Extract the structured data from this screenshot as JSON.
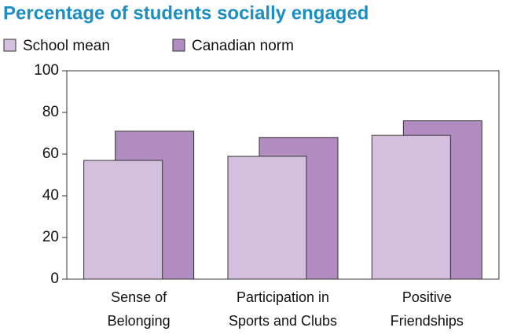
{
  "chart_data": {
    "type": "bar",
    "title": "Percentage of students socially engaged",
    "categories": [
      "Sense of\nBelonging",
      "Participation in\nSports and Clubs",
      "Positive\nFriendships"
    ],
    "series": [
      {
        "name": "School mean",
        "color": "#d4c0de",
        "values": [
          57,
          59,
          69
        ]
      },
      {
        "name": "Canadian norm",
        "color": "#b08cc0",
        "values": [
          71,
          68,
          76
        ]
      }
    ],
    "ylim": [
      0,
      100
    ],
    "yticks": [
      0,
      20,
      40,
      60,
      80,
      100
    ],
    "grid": false
  }
}
